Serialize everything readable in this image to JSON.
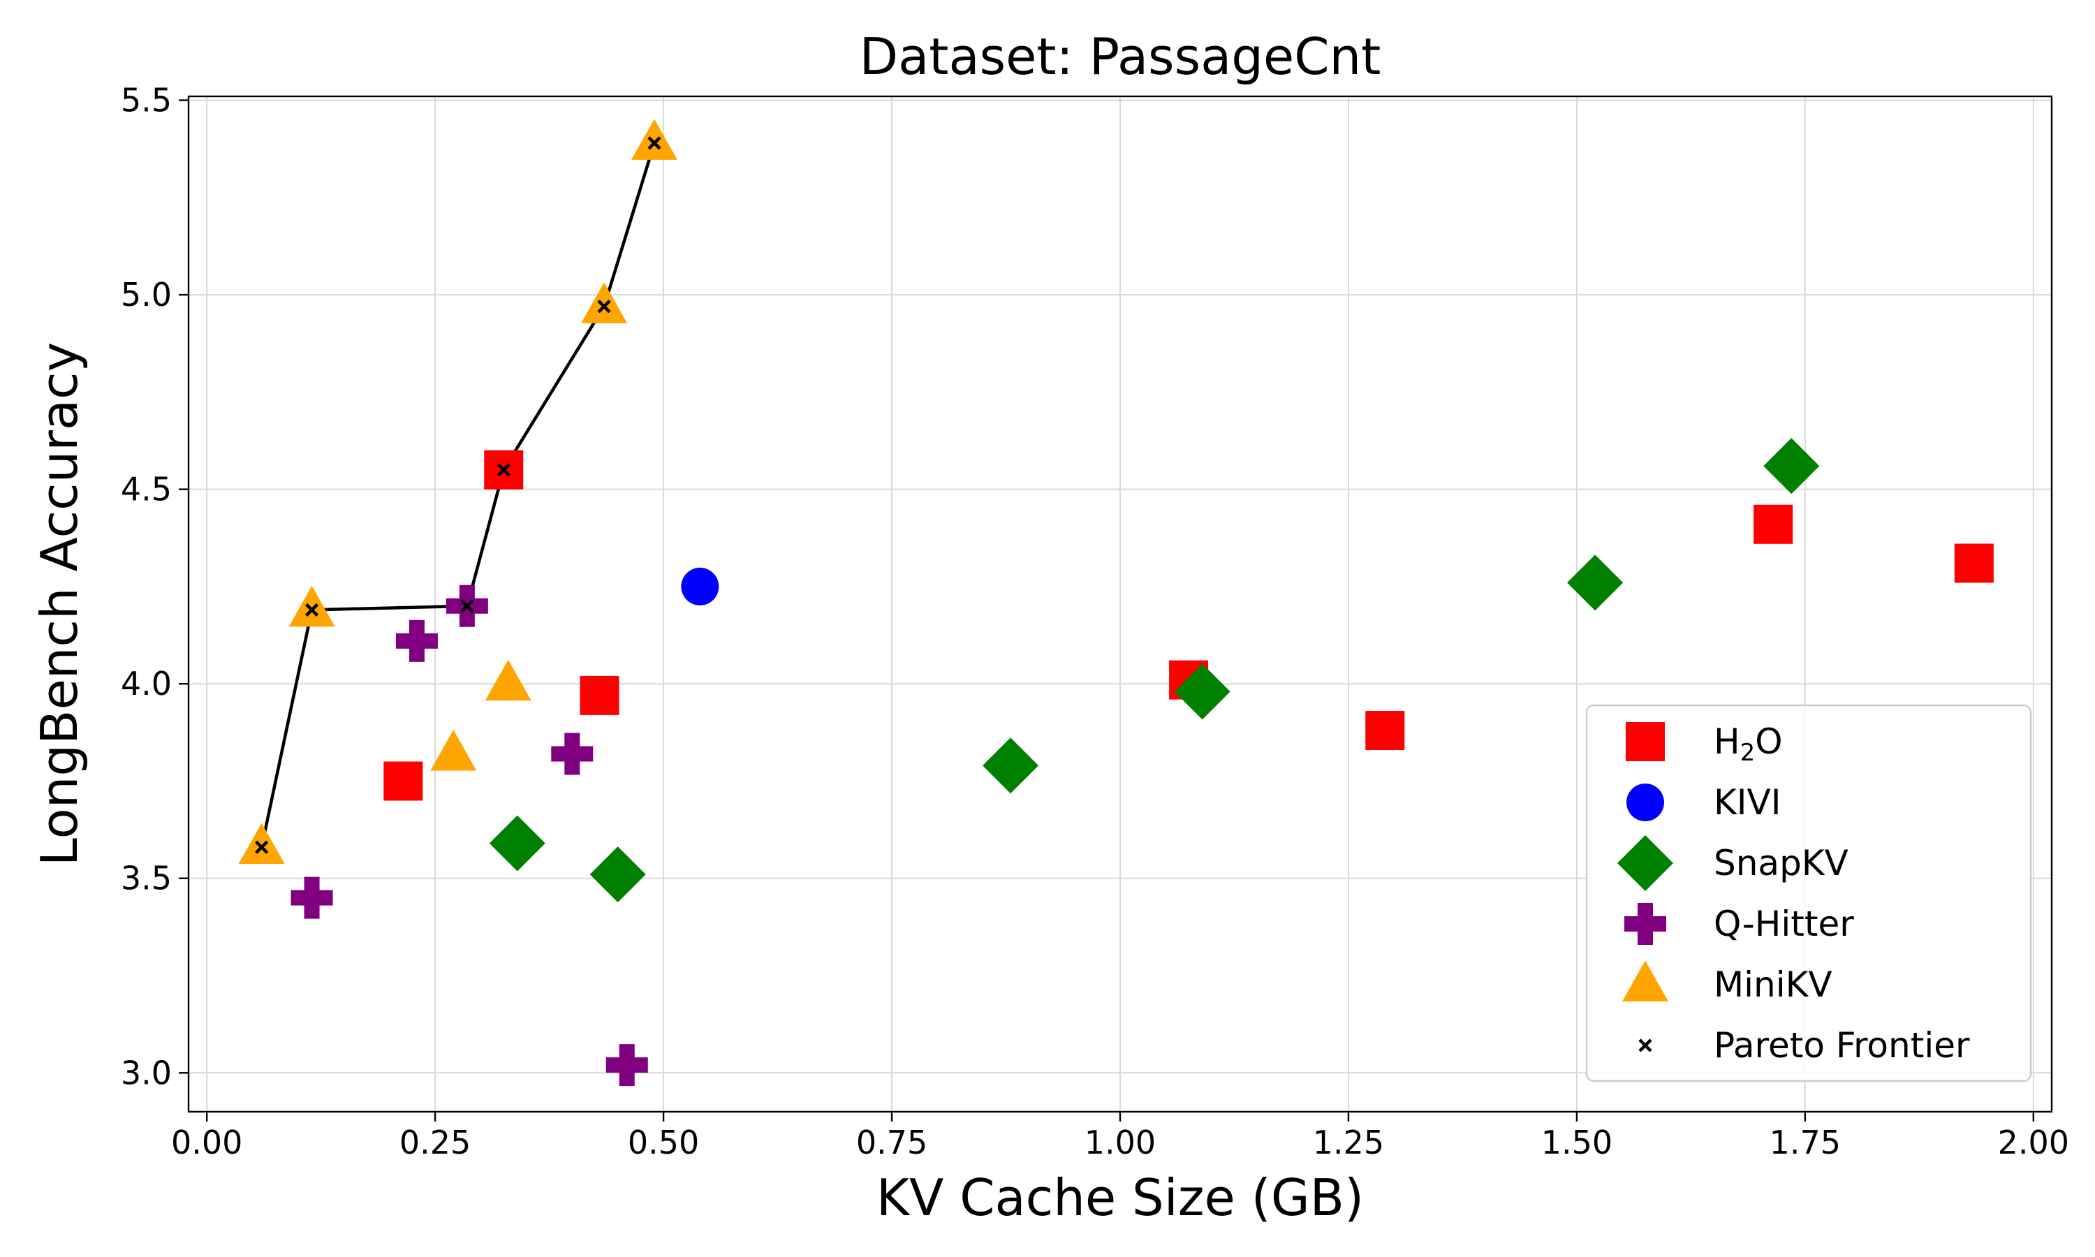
{
  "chart_data": {
    "type": "scatter",
    "title": "Dataset: PassageCnt",
    "xlabel": "KV Cache Size (GB)",
    "ylabel": "LongBench Accuracy",
    "xlim": [
      -0.02,
      2.02
    ],
    "ylim": [
      2.9,
      5.51
    ],
    "xticks": [
      0.0,
      0.25,
      0.5,
      0.75,
      1.0,
      1.25,
      1.5,
      1.75,
      2.0
    ],
    "xtick_labels": [
      "0.00",
      "0.25",
      "0.50",
      "0.75",
      "1.00",
      "1.25",
      "1.50",
      "1.75",
      "2.00"
    ],
    "yticks": [
      3.0,
      3.5,
      4.0,
      4.5,
      5.0,
      5.5
    ],
    "ytick_labels": [
      "3.0",
      "3.5",
      "4.0",
      "4.5",
      "5.0",
      "5.5"
    ],
    "grid": true,
    "legend_position": "bottom-right",
    "series": [
      {
        "name": "H2O",
        "legend_main": "H",
        "legend_sub": "2",
        "legend_tail": "O",
        "marker": "square",
        "color": "#ff0000",
        "points": [
          [
            0.215,
            3.75
          ],
          [
            0.325,
            4.55
          ],
          [
            0.43,
            3.97
          ],
          [
            1.075,
            4.01
          ],
          [
            1.29,
            3.88
          ],
          [
            1.715,
            4.41
          ],
          [
            1.935,
            4.31
          ]
        ]
      },
      {
        "name": "KIVI",
        "legend_main": "KIVI",
        "legend_sub": "",
        "legend_tail": "",
        "marker": "circle",
        "color": "#0000ff",
        "points": [
          [
            0.54,
            4.25
          ]
        ]
      },
      {
        "name": "SnapKV",
        "legend_main": "SnapKV",
        "legend_sub": "",
        "legend_tail": "",
        "marker": "diamond",
        "color": "#008000",
        "points": [
          [
            0.34,
            3.59
          ],
          [
            0.45,
            3.51
          ],
          [
            0.88,
            3.79
          ],
          [
            1.09,
            3.98
          ],
          [
            1.52,
            4.26
          ],
          [
            1.735,
            4.56
          ]
        ]
      },
      {
        "name": "Q-Hitter",
        "legend_main": "Q-Hitter",
        "legend_sub": "",
        "legend_tail": "",
        "marker": "plus",
        "color": "#800080",
        "points": [
          [
            0.115,
            3.45
          ],
          [
            0.23,
            4.11
          ],
          [
            0.285,
            4.2
          ],
          [
            0.4,
            3.82
          ],
          [
            0.46,
            3.02
          ]
        ]
      },
      {
        "name": "MiniKV",
        "legend_main": "MiniKV",
        "legend_sub": "",
        "legend_tail": "",
        "marker": "triangle",
        "color": "#ffa500",
        "points": [
          [
            0.06,
            3.58
          ],
          [
            0.115,
            4.19
          ],
          [
            0.27,
            3.82
          ],
          [
            0.33,
            4.0
          ],
          [
            0.435,
            4.97
          ],
          [
            0.49,
            5.39
          ]
        ]
      }
    ],
    "pareto_frontier": {
      "name": "Pareto Frontier",
      "marker": "x",
      "color": "#000000",
      "points": [
        [
          0.06,
          3.58
        ],
        [
          0.115,
          4.19
        ],
        [
          0.285,
          4.2
        ],
        [
          0.325,
          4.55
        ],
        [
          0.435,
          4.97
        ],
        [
          0.49,
          5.39
        ]
      ]
    }
  }
}
